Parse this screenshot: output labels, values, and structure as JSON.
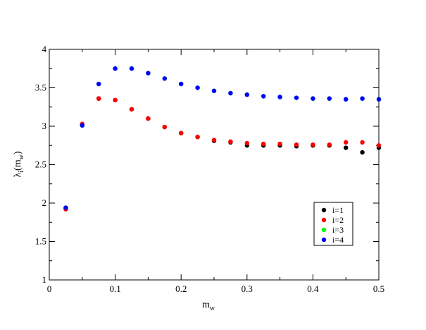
{
  "chart_data": {
    "type": "scatter",
    "title": "",
    "xlabel": {
      "base": "m",
      "sub": "w"
    },
    "ylabel": {
      "base": "λ",
      "sub": "i",
      "paren_base": "m",
      "paren_sub": "w"
    },
    "xlim": [
      0,
      0.5
    ],
    "ylim": [
      1,
      4
    ],
    "x_ticks": [
      "0",
      "0.1",
      "0.2",
      "0.3",
      "0.4",
      "0.5"
    ],
    "y_ticks": [
      "1",
      "1.5",
      "2",
      "2.5",
      "3",
      "3.5",
      "4"
    ],
    "grid": false,
    "legend_position": "bottom-right",
    "series": [
      {
        "name": "i=1",
        "color": "#000000",
        "points": [
          [
            0.025,
            1.93
          ],
          [
            0.05,
            3.02
          ],
          [
            0.075,
            3.36
          ],
          [
            0.1,
            3.34
          ],
          [
            0.125,
            3.22
          ],
          [
            0.15,
            3.1
          ],
          [
            0.175,
            2.99
          ],
          [
            0.2,
            2.91
          ],
          [
            0.225,
            2.86
          ],
          [
            0.25,
            2.81
          ],
          [
            0.275,
            2.79
          ],
          [
            0.3,
            2.75
          ],
          [
            0.325,
            2.75
          ],
          [
            0.35,
            2.75
          ],
          [
            0.375,
            2.74
          ],
          [
            0.4,
            2.75
          ],
          [
            0.425,
            2.75
          ],
          [
            0.45,
            2.72
          ],
          [
            0.475,
            2.66
          ],
          [
            0.5,
            2.72
          ]
        ]
      },
      {
        "name": "i=2",
        "color": "#ff0000",
        "points": [
          [
            0.025,
            1.92
          ],
          [
            0.05,
            3.03
          ],
          [
            0.075,
            3.36
          ],
          [
            0.1,
            3.34
          ],
          [
            0.125,
            3.22
          ],
          [
            0.15,
            3.1
          ],
          [
            0.175,
            2.99
          ],
          [
            0.2,
            2.91
          ],
          [
            0.225,
            2.86
          ],
          [
            0.25,
            2.82
          ],
          [
            0.275,
            2.8
          ],
          [
            0.3,
            2.78
          ],
          [
            0.325,
            2.77
          ],
          [
            0.35,
            2.77
          ],
          [
            0.375,
            2.76
          ],
          [
            0.4,
            2.76
          ],
          [
            0.425,
            2.76
          ],
          [
            0.45,
            2.79
          ],
          [
            0.475,
            2.79
          ],
          [
            0.5,
            2.75
          ]
        ]
      },
      {
        "name": "i=3",
        "color": "#00ff00",
        "points": [
          [
            0.025,
            1.94
          ],
          [
            0.05,
            3.01
          ],
          [
            0.075,
            3.55
          ],
          [
            0.1,
            3.75
          ],
          [
            0.125,
            3.75
          ],
          [
            0.15,
            3.69
          ],
          [
            0.175,
            3.62
          ],
          [
            0.2,
            3.55
          ],
          [
            0.225,
            3.5
          ],
          [
            0.25,
            3.46
          ],
          [
            0.275,
            3.43
          ],
          [
            0.3,
            3.41
          ],
          [
            0.325,
            3.39
          ],
          [
            0.35,
            3.38
          ],
          [
            0.375,
            3.37
          ],
          [
            0.4,
            3.36
          ],
          [
            0.425,
            3.36
          ],
          [
            0.45,
            3.35
          ],
          [
            0.475,
            3.36
          ],
          [
            0.5,
            3.35
          ]
        ]
      },
      {
        "name": "i=4",
        "color": "#0000ff",
        "points": [
          [
            0.025,
            1.94
          ],
          [
            0.05,
            3.01
          ],
          [
            0.075,
            3.55
          ],
          [
            0.1,
            3.75
          ],
          [
            0.125,
            3.75
          ],
          [
            0.15,
            3.69
          ],
          [
            0.175,
            3.62
          ],
          [
            0.2,
            3.55
          ],
          [
            0.225,
            3.5
          ],
          [
            0.25,
            3.46
          ],
          [
            0.275,
            3.43
          ],
          [
            0.3,
            3.41
          ],
          [
            0.325,
            3.39
          ],
          [
            0.35,
            3.38
          ],
          [
            0.375,
            3.37
          ],
          [
            0.4,
            3.36
          ],
          [
            0.425,
            3.36
          ],
          [
            0.45,
            3.35
          ],
          [
            0.475,
            3.36
          ],
          [
            0.5,
            3.35
          ]
        ]
      }
    ]
  }
}
